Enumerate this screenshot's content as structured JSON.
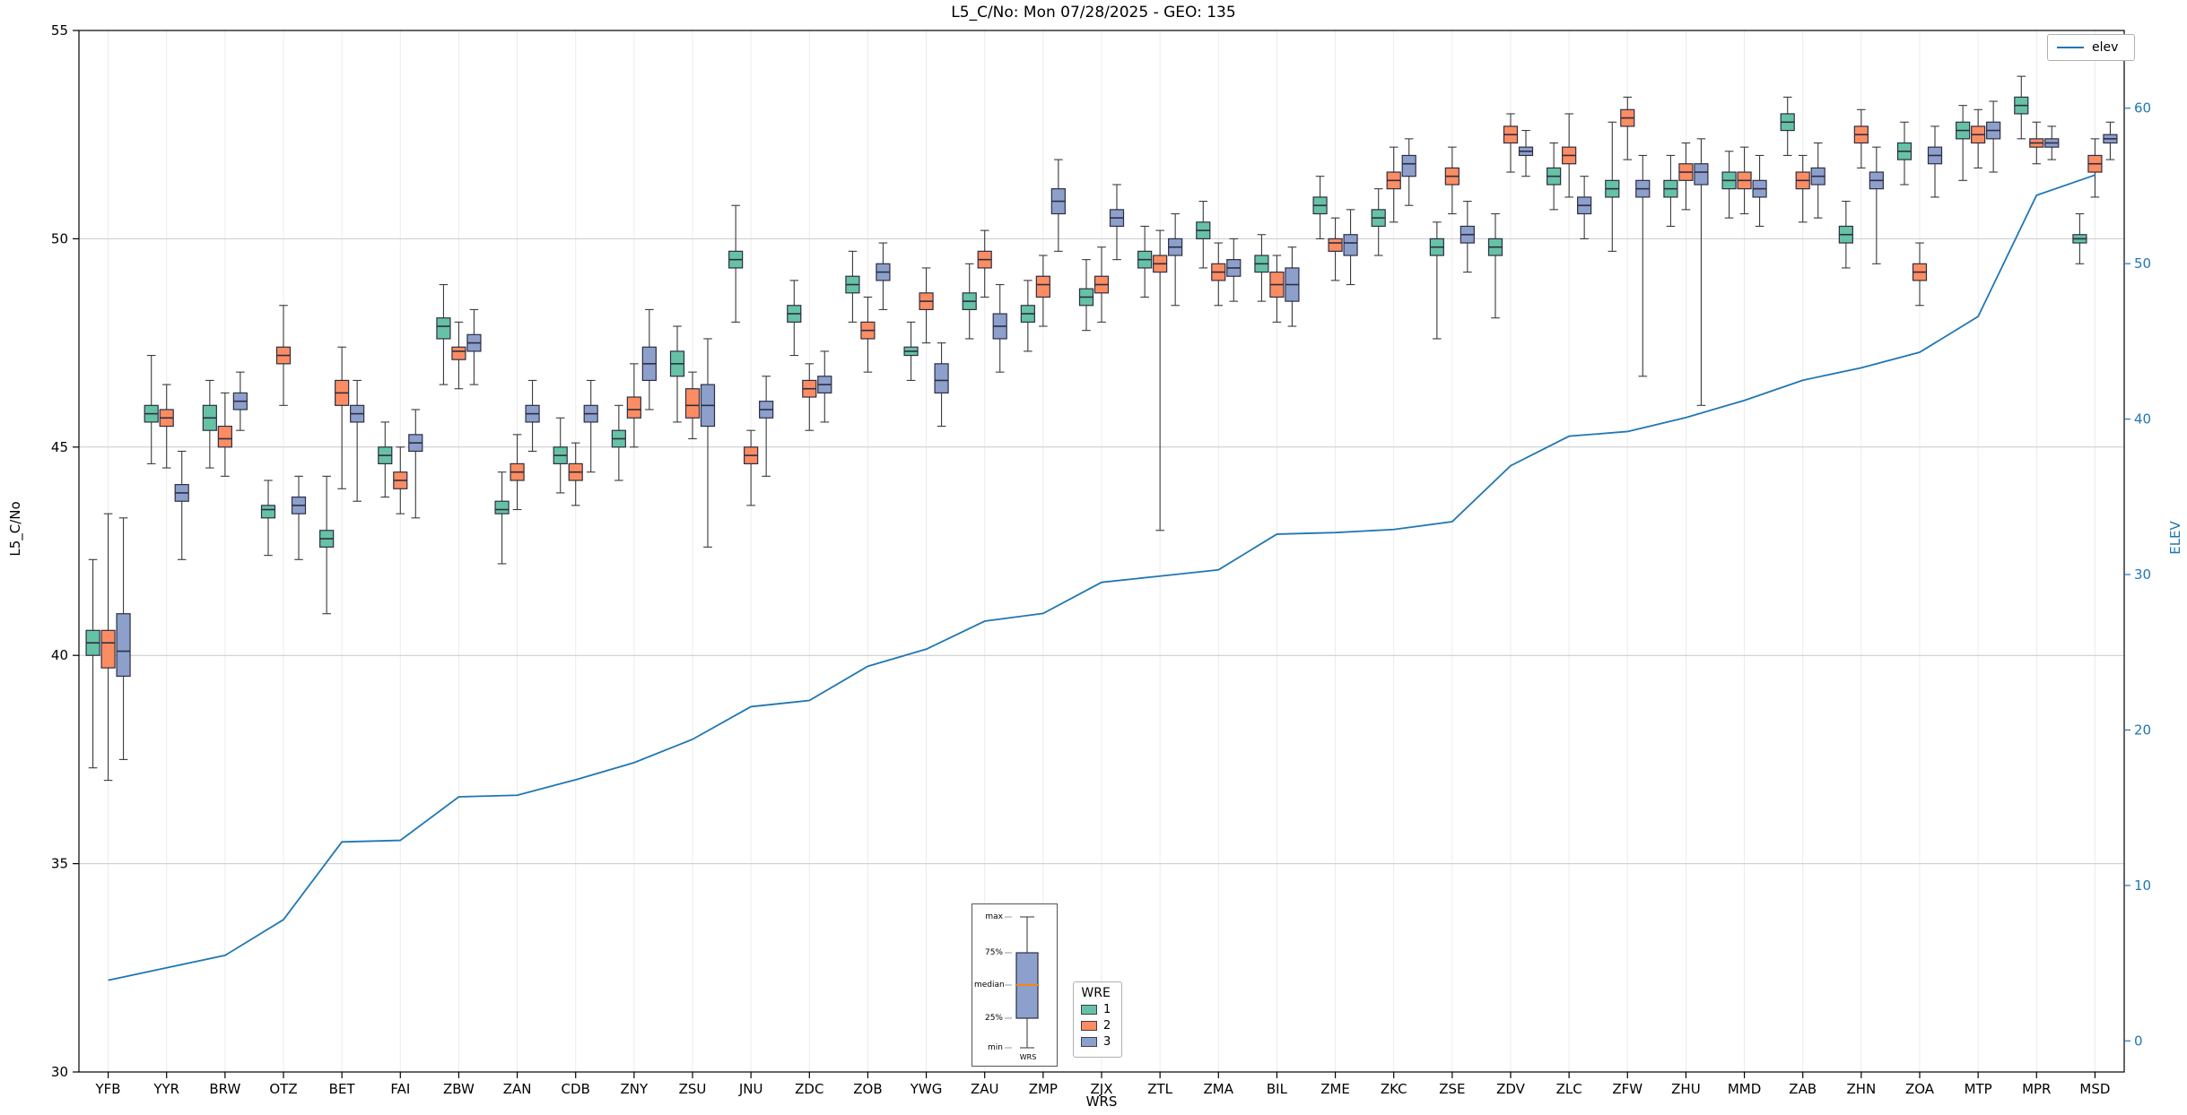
{
  "title": "L5_C/No: Mon 07/28/2025 - GEO: 135",
  "axes": {
    "left_label": "L5_C/No",
    "right_label": "ELEV",
    "x_label": "WRS",
    "left_ticks": [
      30,
      35,
      40,
      45,
      50,
      55
    ],
    "right_ticks": [
      0,
      10,
      20,
      30,
      40,
      50,
      60
    ],
    "left_ylim": [
      30,
      55
    ],
    "right_ylim": [
      -2,
      65
    ],
    "grid": true
  },
  "legend_elev": {
    "label": "elev",
    "color": "#1f77b4"
  },
  "legend_wre": {
    "title": "WRE",
    "entries": [
      {
        "label": "1",
        "color": "#66c2a5"
      },
      {
        "label": "2",
        "color": "#fc8d62"
      },
      {
        "label": "3",
        "color": "#8da0cb"
      }
    ]
  },
  "inset": {
    "labels": [
      "max",
      "75%",
      "median",
      "25%",
      "min"
    ],
    "xlabel": "WRS",
    "box_color": "#8da0cb",
    "median_color": "#ff7f0e"
  },
  "chart_data": {
    "type": "boxplot+line",
    "title": "L5_C/No: Mon 07/28/2025 - GEO: 135",
    "xlabel": "WRS",
    "ylabel_left": "L5_C/No",
    "ylabel_right": "ELEV",
    "categories": [
      "YFB",
      "YYR",
      "BRW",
      "OTZ",
      "BET",
      "FAI",
      "ZBW",
      "ZAN",
      "CDB",
      "ZNY",
      "ZSU",
      "JNU",
      "ZDC",
      "ZOB",
      "YWG",
      "ZAU",
      "ZMP",
      "ZJX",
      "ZTL",
      "ZMA",
      "BIL",
      "ZME",
      "ZKC",
      "ZSE",
      "ZDV",
      "ZLC",
      "ZFW",
      "ZHU",
      "MMD",
      "ZAB",
      "ZHN",
      "ZOA",
      "MTP",
      "MPR",
      "MSD"
    ],
    "box_stats_format": [
      "min",
      "q1",
      "median",
      "q3",
      "max"
    ],
    "series": [
      {
        "name": "1",
        "color": "#66c2a5",
        "boxes": [
          [
            37.3,
            40.0,
            40.3,
            40.6,
            42.3
          ],
          [
            44.6,
            45.6,
            45.8,
            46.0,
            47.2
          ],
          [
            44.5,
            45.4,
            45.7,
            46.0,
            46.6
          ],
          [
            42.4,
            43.3,
            43.5,
            43.6,
            44.2
          ],
          [
            41.0,
            42.6,
            42.8,
            43.0,
            44.3
          ],
          [
            43.8,
            44.6,
            44.8,
            45.0,
            45.6
          ],
          [
            46.5,
            47.6,
            47.9,
            48.1,
            48.9
          ],
          [
            42.2,
            43.4,
            43.5,
            43.7,
            44.4
          ],
          [
            43.9,
            44.6,
            44.8,
            45.0,
            45.7
          ],
          [
            44.2,
            45.0,
            45.2,
            45.4,
            46.0
          ],
          [
            45.6,
            46.7,
            47.0,
            47.3,
            47.9
          ],
          [
            48.0,
            49.3,
            49.5,
            49.7,
            50.8
          ],
          [
            47.2,
            48.0,
            48.2,
            48.4,
            49.0
          ],
          [
            48.0,
            48.7,
            48.9,
            49.1,
            49.7
          ],
          [
            46.6,
            47.2,
            47.3,
            47.4,
            48.0
          ],
          [
            47.6,
            48.3,
            48.5,
            48.7,
            49.4
          ],
          [
            47.3,
            48.0,
            48.2,
            48.4,
            49.0
          ],
          [
            47.8,
            48.4,
            48.6,
            48.8,
            49.5
          ],
          [
            48.6,
            49.3,
            49.5,
            49.7,
            50.3
          ],
          [
            49.3,
            50.0,
            50.2,
            50.4,
            50.9
          ],
          [
            48.5,
            49.2,
            49.4,
            49.6,
            50.1
          ],
          [
            50.0,
            50.6,
            50.8,
            51.0,
            51.5
          ],
          [
            49.6,
            50.3,
            50.5,
            50.7,
            51.2
          ],
          [
            47.6,
            49.6,
            49.8,
            50.0,
            50.4
          ],
          [
            48.1,
            49.6,
            49.8,
            50.0,
            50.6
          ],
          [
            50.7,
            51.3,
            51.5,
            51.7,
            52.3
          ],
          [
            49.7,
            51.0,
            51.2,
            51.4,
            52.8
          ],
          [
            50.3,
            51.0,
            51.2,
            51.4,
            52.0
          ],
          [
            50.5,
            51.2,
            51.4,
            51.6,
            52.1
          ],
          [
            52.0,
            52.6,
            52.8,
            53.0,
            53.4
          ],
          [
            49.3,
            49.9,
            50.1,
            50.3,
            50.9
          ],
          [
            51.3,
            51.9,
            52.1,
            52.3,
            52.8
          ],
          [
            51.4,
            52.4,
            52.6,
            52.8,
            53.2
          ],
          [
            52.4,
            53.0,
            53.2,
            53.4,
            53.9
          ],
          [
            49.4,
            49.9,
            50.0,
            50.1,
            50.6
          ]
        ]
      },
      {
        "name": "2",
        "color": "#fc8d62",
        "boxes": [
          [
            37.0,
            39.7,
            40.3,
            40.6,
            43.4
          ],
          [
            44.5,
            45.5,
            45.7,
            45.9,
            46.5
          ],
          [
            44.3,
            45.0,
            45.2,
            45.5,
            46.3
          ],
          [
            46.0,
            47.0,
            47.2,
            47.4,
            48.4
          ],
          [
            44.0,
            46.0,
            46.3,
            46.6,
            47.4
          ],
          [
            43.4,
            44.0,
            44.2,
            44.4,
            45.0
          ],
          [
            46.4,
            47.1,
            47.3,
            47.4,
            48.0
          ],
          [
            43.5,
            44.2,
            44.4,
            44.6,
            45.3
          ],
          [
            43.6,
            44.2,
            44.4,
            44.6,
            45.1
          ],
          [
            45.0,
            45.7,
            45.9,
            46.2,
            47.0
          ],
          [
            45.2,
            45.7,
            46.0,
            46.4,
            46.8
          ],
          [
            43.6,
            44.6,
            44.8,
            45.0,
            45.4
          ],
          [
            45.4,
            46.2,
            46.4,
            46.6,
            47.0
          ],
          [
            46.8,
            47.6,
            47.8,
            48.0,
            48.6
          ],
          [
            47.5,
            48.3,
            48.5,
            48.7,
            49.3
          ],
          [
            48.6,
            49.3,
            49.5,
            49.7,
            50.2
          ],
          [
            47.9,
            48.6,
            48.9,
            49.1,
            49.6
          ],
          [
            48.0,
            48.7,
            48.9,
            49.1,
            49.8
          ],
          [
            43.0,
            49.2,
            49.4,
            49.6,
            50.2
          ],
          [
            48.4,
            49.0,
            49.2,
            49.4,
            49.9
          ],
          [
            48.0,
            48.6,
            48.9,
            49.2,
            49.6
          ],
          [
            49.0,
            49.7,
            49.9,
            50.0,
            50.5
          ],
          [
            50.4,
            51.2,
            51.4,
            51.6,
            52.2
          ],
          [
            50.6,
            51.3,
            51.5,
            51.7,
            52.2
          ],
          [
            51.6,
            52.3,
            52.5,
            52.7,
            53.0
          ],
          [
            51.0,
            51.8,
            52.0,
            52.2,
            53.0
          ],
          [
            51.9,
            52.7,
            52.9,
            53.1,
            53.4
          ],
          [
            50.7,
            51.4,
            51.6,
            51.8,
            52.3
          ],
          [
            50.6,
            51.2,
            51.4,
            51.6,
            52.2
          ],
          [
            50.4,
            51.2,
            51.4,
            51.6,
            52.0
          ],
          [
            51.7,
            52.3,
            52.5,
            52.7,
            53.1
          ],
          [
            48.4,
            49.0,
            49.2,
            49.4,
            49.9
          ],
          [
            51.7,
            52.3,
            52.5,
            52.7,
            53.1
          ],
          [
            51.8,
            52.2,
            52.3,
            52.4,
            52.8
          ],
          [
            51.0,
            51.6,
            51.8,
            52.0,
            52.4
          ]
        ]
      },
      {
        "name": "3",
        "color": "#8da0cb",
        "boxes": [
          [
            37.5,
            39.5,
            40.1,
            41.0,
            43.3
          ],
          [
            42.3,
            43.7,
            43.9,
            44.1,
            44.9
          ],
          [
            45.4,
            45.9,
            46.1,
            46.3,
            46.8
          ],
          [
            42.3,
            43.4,
            43.6,
            43.8,
            44.3
          ],
          [
            43.7,
            45.6,
            45.8,
            46.0,
            46.6
          ],
          [
            43.3,
            44.9,
            45.1,
            45.3,
            45.9
          ],
          [
            46.5,
            47.3,
            47.5,
            47.7,
            48.3
          ],
          [
            44.9,
            45.6,
            45.8,
            46.0,
            46.6
          ],
          [
            44.4,
            45.6,
            45.8,
            46.0,
            46.6
          ],
          [
            45.9,
            46.6,
            47.0,
            47.4,
            48.3
          ],
          [
            42.6,
            45.5,
            46.0,
            46.5,
            47.6
          ],
          [
            44.3,
            45.7,
            45.9,
            46.1,
            46.7
          ],
          [
            45.6,
            46.3,
            46.5,
            46.7,
            47.3
          ],
          [
            48.3,
            49.0,
            49.2,
            49.4,
            49.9
          ],
          [
            45.5,
            46.3,
            46.6,
            47.0,
            47.5
          ],
          [
            46.8,
            47.6,
            47.9,
            48.2,
            48.9
          ],
          [
            49.7,
            50.6,
            50.9,
            51.2,
            51.9
          ],
          [
            49.5,
            50.3,
            50.5,
            50.7,
            51.3
          ],
          [
            48.4,
            49.6,
            49.8,
            50.0,
            50.6
          ],
          [
            48.5,
            49.1,
            49.3,
            49.5,
            50.0
          ],
          [
            47.9,
            48.5,
            48.9,
            49.3,
            49.8
          ],
          [
            48.9,
            49.6,
            49.9,
            50.1,
            50.7
          ],
          [
            50.8,
            51.5,
            51.8,
            52.0,
            52.4
          ],
          [
            49.2,
            49.9,
            50.1,
            50.3,
            50.9
          ],
          [
            51.5,
            52.0,
            52.1,
            52.2,
            52.6
          ],
          [
            50.0,
            50.6,
            50.8,
            51.0,
            51.5
          ],
          [
            46.7,
            51.0,
            51.2,
            51.4,
            52.0
          ],
          [
            46.0,
            51.3,
            51.6,
            51.8,
            52.4
          ],
          [
            50.3,
            51.0,
            51.2,
            51.4,
            52.0
          ],
          [
            50.5,
            51.3,
            51.5,
            51.7,
            52.3
          ],
          [
            49.4,
            51.2,
            51.4,
            51.6,
            52.2
          ],
          [
            51.0,
            51.8,
            52.0,
            52.2,
            52.7
          ],
          [
            51.6,
            52.4,
            52.6,
            52.8,
            53.3
          ],
          [
            51.9,
            52.2,
            52.3,
            52.4,
            52.7
          ],
          [
            51.9,
            52.3,
            52.4,
            52.5,
            52.8
          ]
        ]
      }
    ],
    "line": {
      "name": "elev",
      "color": "#1f77b4",
      "axis": "right",
      "values": [
        3.9,
        4.7,
        5.5,
        7.8,
        12.8,
        12.9,
        15.7,
        15.8,
        16.8,
        17.9,
        19.4,
        21.5,
        21.9,
        24.1,
        25.2,
        27.0,
        27.5,
        29.5,
        29.9,
        30.3,
        32.6,
        32.7,
        32.9,
        33.4,
        37.0,
        38.9,
        39.2,
        40.1,
        41.2,
        42.5,
        43.3,
        44.3,
        46.6,
        54.4,
        55.7
      ]
    },
    "legend_position": {
      "elev": "upper right",
      "wre": "lower center"
    }
  }
}
